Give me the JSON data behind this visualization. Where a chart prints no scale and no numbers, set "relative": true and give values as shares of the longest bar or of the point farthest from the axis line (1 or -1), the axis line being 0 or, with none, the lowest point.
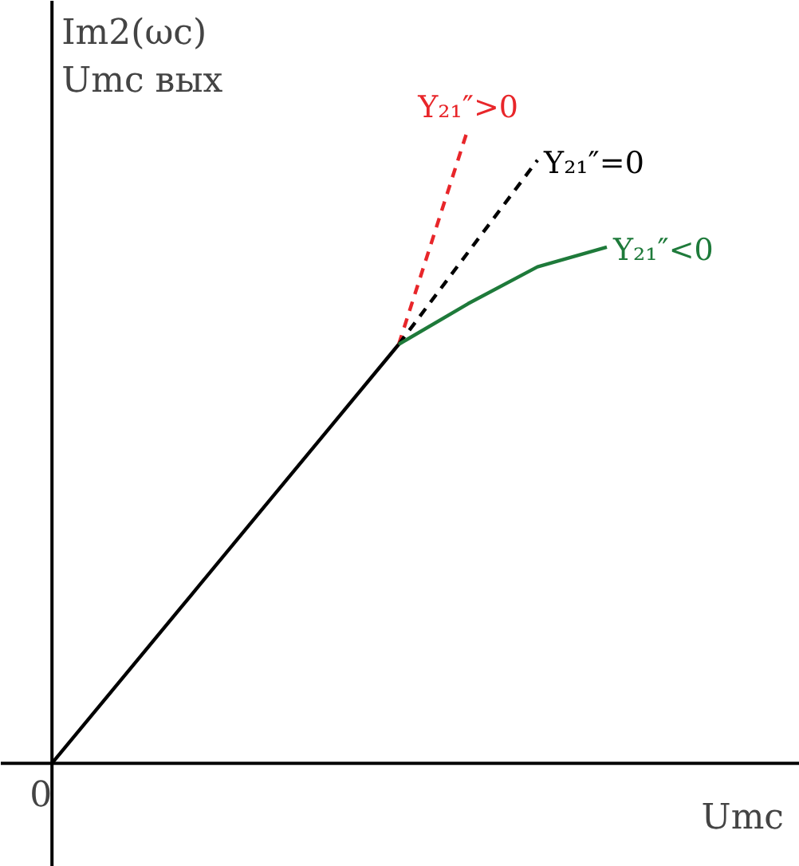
{
  "chart_data": {
    "type": "line",
    "relative": true,
    "xlabel": "Umc",
    "ylabel": "Im2(ωc)\nUmc вых",
    "categories": [
      null,
      null,
      null,
      null,
      null,
      null,
      null,
      null,
      null
    ],
    "annotations": [
      "0"
    ],
    "series": [
      {
        "color": "#000000",
        "values": [
          0,
          0.132,
          0.264,
          0.396,
          0.528,
          0.66,
          null,
          null,
          null
        ],
        "line_style": "solid"
      },
      {
        "name": "Y₂₁″>0",
        "color": "#e8262a",
        "values": [
          null,
          null,
          null,
          null,
          null,
          0.66,
          1.0,
          null,
          null
        ],
        "line_style": "dashed"
      },
      {
        "name": "Y₂₁″=0",
        "color": "#000000",
        "values": [
          null,
          null,
          null,
          null,
          null,
          0.66,
          0.805,
          0.95,
          null
        ],
        "line_style": "dashed"
      },
      {
        "name": "Y₂₁″<0",
        "color": "#1e7a3a",
        "values": [
          null,
          null,
          null,
          null,
          null,
          0.66,
          0.724,
          0.782,
          0.813
        ],
        "line_style": "solid"
      }
    ]
  }
}
